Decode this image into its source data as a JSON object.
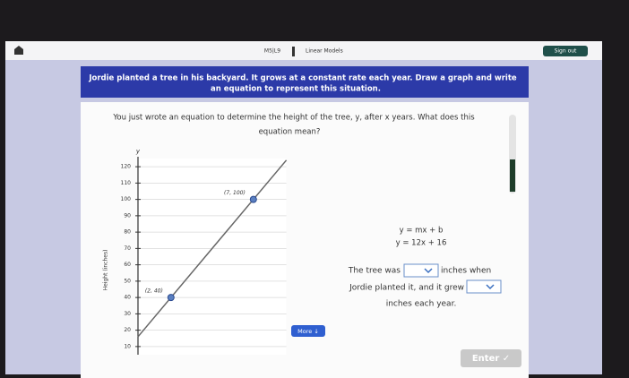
{
  "header": {
    "lesson": "M5|L9",
    "title": "Linear Models",
    "sign_out": "Sign out"
  },
  "banner": {
    "lines": [
      "Jordie planted a tree in his backyard. It grows at a constant rate each year. Draw a graph and write",
      "an equation to represent this situation."
    ]
  },
  "question": {
    "lines": [
      "You just wrote an equation to determine the height of the tree, y, after x years. What does this",
      "equation mean?"
    ]
  },
  "graph": {
    "y_label": "Height (inches)",
    "y_axis_name": "y",
    "xlim": [
      0,
      9
    ],
    "ylim": [
      5,
      125
    ],
    "yticks": [
      10,
      20,
      30,
      40,
      50,
      60,
      70,
      80,
      90,
      100,
      110,
      120
    ],
    "grid": true,
    "line_color": "#666666",
    "point_color": "#5a7fc0",
    "points": [
      {
        "x": 2,
        "y": 40,
        "label": "(2, 40)"
      },
      {
        "x": 7,
        "y": 100,
        "label": "(7, 100)"
      }
    ]
  },
  "equations": [
    "y = mx + b",
    "y = 12x + 16"
  ],
  "sentence": [
    "The tree was",
    "inches when",
    "Jordie planted it, and it grew",
    "inches each year."
  ],
  "buttons": {
    "more": "More ↓",
    "enter": "Enter ✓"
  }
}
